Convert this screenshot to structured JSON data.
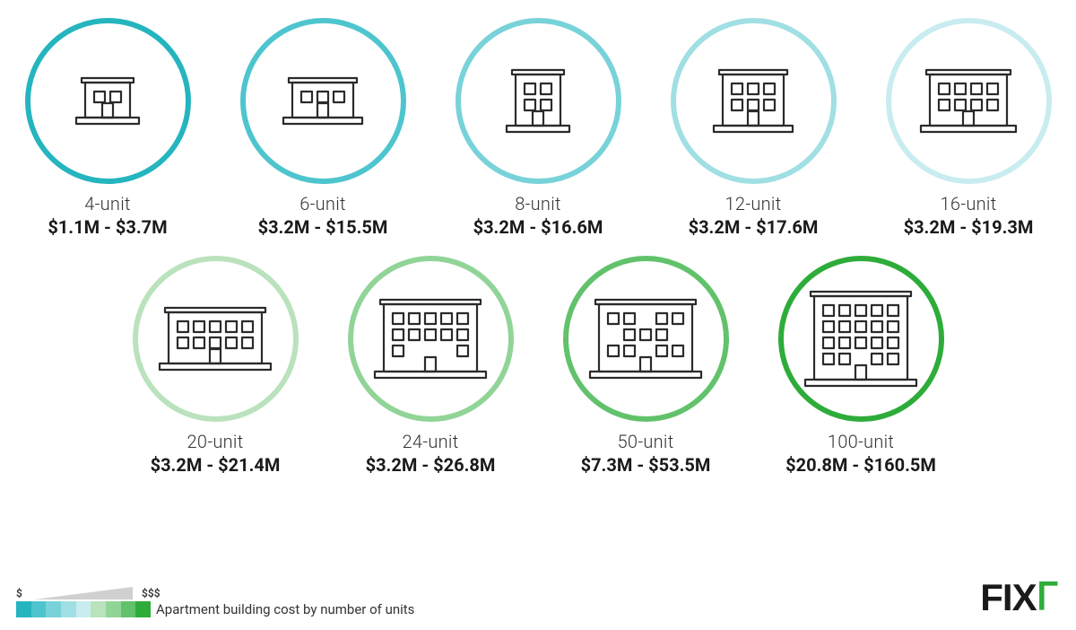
{
  "background_color": "#ffffff",
  "icon_stroke": "#2b2b2b",
  "circle_border_width": 6,
  "circle_diameter": 185,
  "label_unit_fontsize": 20,
  "label_unit_fontweight": 300,
  "label_cost_fontsize": 20,
  "label_cost_fontweight": 700,
  "rows": [
    [
      {
        "unit_label": "4-unit",
        "cost_label": "$1.1M - $3.7M",
        "ring_color": "#25b5bf",
        "windows": [
          [
            0,
            0
          ],
          [
            1,
            0
          ]
        ]
      },
      {
        "unit_label": "6-unit",
        "cost_label": "$3.2M - $15.5M",
        "ring_color": "#4ec5ce",
        "windows": [
          [
            0,
            0
          ],
          [
            1,
            0
          ],
          [
            2,
            0
          ]
        ]
      },
      {
        "unit_label": "8-unit",
        "cost_label": "$3.2M - $16.6M",
        "ring_color": "#78d2d9",
        "windows": [
          [
            0,
            0
          ],
          [
            1,
            0
          ],
          [
            0,
            1
          ],
          [
            1,
            1
          ]
        ]
      },
      {
        "unit_label": "12-unit",
        "cost_label": "$3.2M - $17.6M",
        "ring_color": "#a0dfe4",
        "windows": [
          [
            0,
            0
          ],
          [
            1,
            0
          ],
          [
            2,
            0
          ],
          [
            0,
            1
          ],
          [
            1,
            1
          ],
          [
            2,
            1
          ]
        ]
      },
      {
        "unit_label": "16-unit",
        "cost_label": "$3.2M - $19.3M",
        "ring_color": "#c8ecef",
        "windows": [
          [
            0,
            0
          ],
          [
            1,
            0
          ],
          [
            2,
            0
          ],
          [
            3,
            0
          ],
          [
            0,
            1
          ],
          [
            1,
            1
          ],
          [
            2,
            1
          ],
          [
            3,
            1
          ]
        ]
      }
    ],
    [
      {
        "unit_label": "20-unit",
        "cost_label": "$3.2M - $21.4M",
        "ring_color": "#b9e2bd",
        "windows": [
          [
            0,
            0
          ],
          [
            1,
            0
          ],
          [
            2,
            0
          ],
          [
            3,
            0
          ],
          [
            4,
            0
          ],
          [
            0,
            1
          ],
          [
            1,
            1
          ],
          [
            2,
            1
          ],
          [
            3,
            1
          ],
          [
            4,
            1
          ]
        ]
      },
      {
        "unit_label": "24-unit",
        "cost_label": "$3.2M - $26.8M",
        "ring_color": "#91d497",
        "windows": [
          [
            0,
            0
          ],
          [
            1,
            0
          ],
          [
            2,
            0
          ],
          [
            3,
            0
          ],
          [
            4,
            0
          ],
          [
            0,
            1
          ],
          [
            1,
            1
          ],
          [
            2,
            1
          ],
          [
            3,
            1
          ],
          [
            4,
            1
          ],
          [
            0,
            2
          ],
          [
            4,
            2
          ]
        ]
      },
      {
        "unit_label": "50-unit",
        "cost_label": "$7.3M - $53.5M",
        "ring_color": "#62c26b",
        "windows": [
          [
            0,
            0
          ],
          [
            1,
            0
          ],
          [
            3,
            0
          ],
          [
            4,
            0
          ],
          [
            1,
            1
          ],
          [
            2,
            1
          ],
          [
            3,
            1
          ],
          [
            0,
            2
          ],
          [
            1,
            2
          ],
          [
            3,
            2
          ],
          [
            4,
            2
          ]
        ]
      },
      {
        "unit_label": "100-unit",
        "cost_label": "$20.8M - $160.5M",
        "ring_color": "#2eac3a",
        "windows": [
          [
            0,
            0
          ],
          [
            1,
            0
          ],
          [
            2,
            0
          ],
          [
            3,
            0
          ],
          [
            4,
            0
          ],
          [
            0,
            1
          ],
          [
            1,
            1
          ],
          [
            2,
            1
          ],
          [
            3,
            1
          ],
          [
            4,
            1
          ],
          [
            0,
            2
          ],
          [
            1,
            2
          ],
          [
            2,
            2
          ],
          [
            3,
            2
          ],
          [
            4,
            2
          ],
          [
            0,
            3
          ],
          [
            1,
            3
          ],
          [
            3,
            3
          ],
          [
            4,
            3
          ]
        ]
      }
    ]
  ],
  "legend": {
    "low_label": "$",
    "high_label": "$$$",
    "caption": "Apartment building cost by number of units",
    "colors": [
      "#25b5bf",
      "#4ec5ce",
      "#78d2d9",
      "#a0dfe4",
      "#c8ecef",
      "#b9e2bd",
      "#91d497",
      "#62c26b",
      "#2eac3a"
    ]
  },
  "logo": {
    "text": "FIX",
    "hook": "ᒥ",
    "text_color": "#1a1a1a",
    "hook_color": "#2eac3a"
  }
}
